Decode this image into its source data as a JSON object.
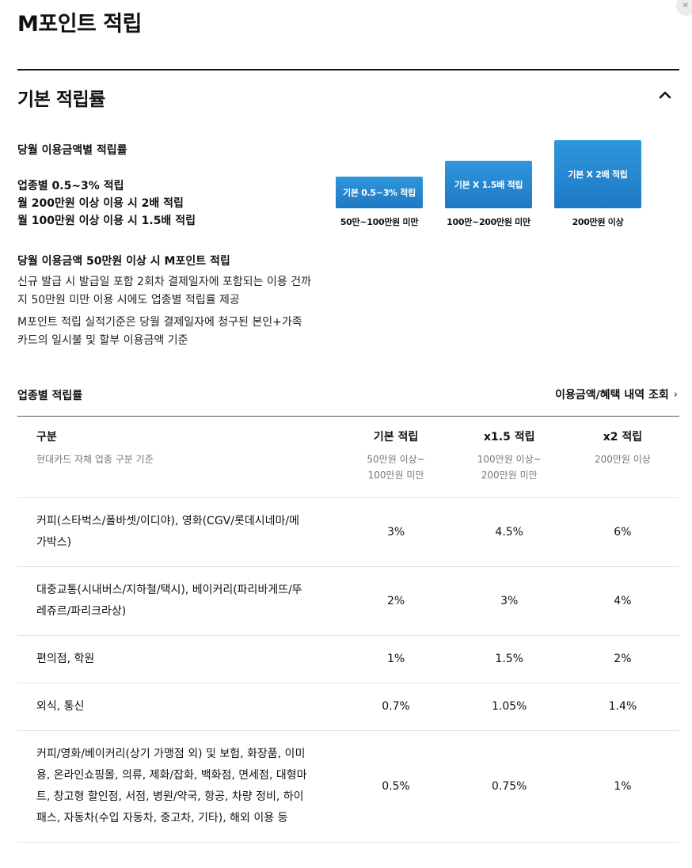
{
  "page": {
    "title": "M포인트 적립"
  },
  "section": {
    "title": "기본 적립률"
  },
  "info": {
    "heading": "당월 이용금액별 적립률",
    "tier_lines": [
      "업종별 0.5~3% 적립",
      "월 200만원 이상 이용 시 2배 적립",
      "월 100만원 이상 이용 시 1.5배 적립"
    ],
    "bars": [
      {
        "label": "기본 0.5~3% 적립",
        "caption": "50만~100만원 미만"
      },
      {
        "label": "기본 X 1.5배 적립",
        "caption": "100만~200만원 미만"
      },
      {
        "label": "기본 X 2배 적립",
        "caption": "200만원 이상"
      }
    ],
    "min_heading": "당월 이용금액 50만원 이상 시 M포인트 적립",
    "note_1": "신규 발급 시 발급일 포함 2회차 결제일자에 포함되는 이용 건까지 50만원 미만 이용 시에도 업종별 적립률 제공",
    "note_2": "M포인트 적립 실적기준은 당월 결제일자에 청구된 본인+가족카드의 일시불 및 할부 이용금액 기준"
  },
  "rates": {
    "title": "업종별 적립률",
    "link_label": "이용금액/혜택 내역 조회",
    "link_chevron": "›",
    "header": {
      "category": "구분",
      "category_sub": "현대카드 자체 업종 구분 기준",
      "columns": [
        {
          "label": "기본 적립",
          "sub": "50만원 이상~\n100만원 미만"
        },
        {
          "label": "x1.5 적립",
          "sub": "100만원 이상~\n200만원 미만"
        },
        {
          "label": "x2 적립",
          "sub": "200만원 이상"
        }
      ]
    },
    "rows": [
      {
        "category": "커피(스타벅스/폴바셋/이디야), 영화(CGV/롯데시네마/메가박스)",
        "values": [
          "3%",
          "4.5%",
          "6%"
        ]
      },
      {
        "category": "대중교통(시내버스/지하철/택시), 베이커리(파리바게뜨/뚜레쥬르/파리크라상)",
        "values": [
          "2%",
          "3%",
          "4%"
        ]
      },
      {
        "category": "편의점, 학원",
        "values": [
          "1%",
          "1.5%",
          "2%"
        ]
      },
      {
        "category": "외식, 통신",
        "values": [
          "0.7%",
          "1.05%",
          "1.4%"
        ]
      },
      {
        "category": "커피/영화/베이커리(상기 가맹점 외) 및 보험, 화장품, 이미용, 온라인쇼핑몰, 의류, 제화/잡화, 백화점, 면세점, 대형마트, 창고형 할인점, 서점, 병원/약국, 항공, 차량 정비, 하이패스, 자동차(수입 자동차, 중고차, 기타), 해외 이용 등",
        "values": [
          "0.5%",
          "0.75%",
          "1%"
        ]
      }
    ]
  },
  "icons": {
    "close": "close-icon",
    "collapse": "chevron-up-icon"
  }
}
